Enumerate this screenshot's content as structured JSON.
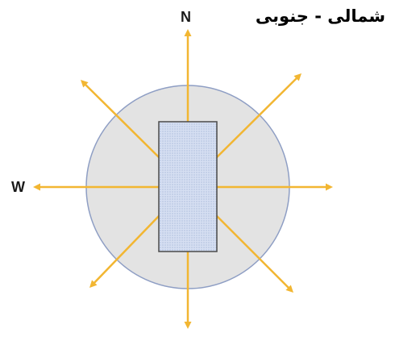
{
  "title": "شمالی - جنوبی",
  "labels": {
    "north": "N",
    "west": "W"
  },
  "colors": {
    "arrow": "#F2B632",
    "circle_fill": "#E3E3E3",
    "circle_stroke": "#8E9EC4",
    "building_fill": "#CDD8F0",
    "building_stroke": "#4A4A4A"
  }
}
